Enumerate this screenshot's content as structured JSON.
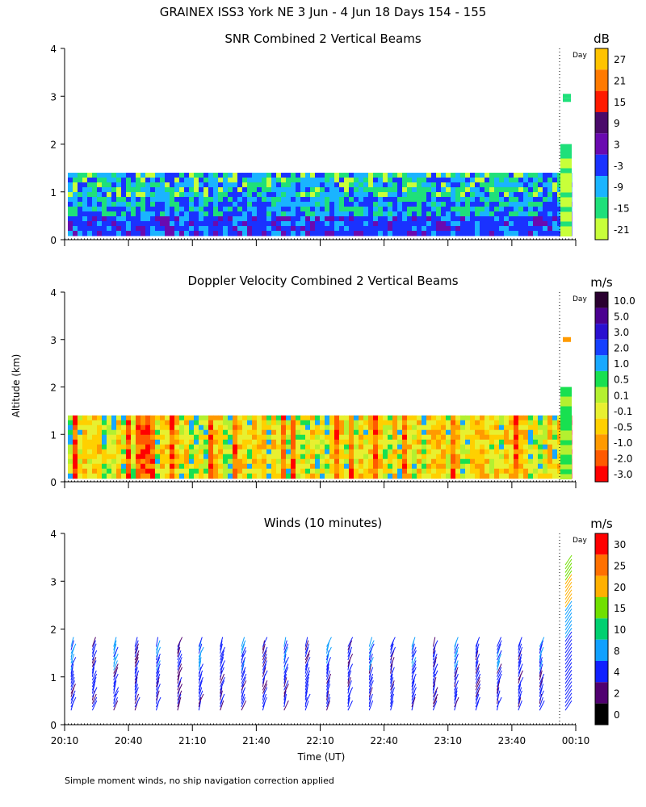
{
  "header": {
    "title": "GRAINEX ISS3 York NE    3 Jun -  4 Jun 18 Days 154 - 155"
  },
  "shared": {
    "ylabel": "Altitude (km)",
    "xlabel": "Time (UT)",
    "day_label": "Day",
    "footnote": "Simple moment winds, no ship navigation correction applied"
  },
  "chart_data": [
    {
      "type": "heatmap",
      "title": "SNR Combined 2 Vertical Beams",
      "xlabel": "Time (UT)",
      "ylabel": "Altitude (km)",
      "x_ticks": [
        "20:10",
        "20:40",
        "21:10",
        "21:40",
        "22:10",
        "22:40",
        "23:10",
        "23:40",
        "00:10"
      ],
      "y_ticks": [
        0,
        1,
        2,
        3,
        4
      ],
      "ylim": [
        0,
        4
      ],
      "colorbar": {
        "unit": "dB",
        "labels": [
          "27",
          "21",
          "15",
          "9",
          "3",
          "-3",
          "-9",
          "-15",
          "-21"
        ],
        "colors": [
          "#ffc300",
          "#ff7a00",
          "#ff1a00",
          "#4a0a6a",
          "#6a0ab0",
          "#1a32ff",
          "#1ab4ff",
          "#1fe07a",
          "#c8ff3a"
        ]
      },
      "description_values": {
        "data_top_km": 1.4,
        "late_data_top_km": 2.0,
        "band_low": "-3 dB",
        "band_high": "-15 dB"
      }
    },
    {
      "type": "heatmap",
      "title": "Doppler Velocity Combined 2 Vertical Beams",
      "xlabel": "Time (UT)",
      "ylabel": "Altitude (km)",
      "x_ticks": [
        "20:10",
        "20:40",
        "21:10",
        "21:40",
        "22:10",
        "22:40",
        "23:10",
        "23:40",
        "00:10"
      ],
      "y_ticks": [
        0,
        1,
        2,
        3,
        4
      ],
      "ylim": [
        0,
        4
      ],
      "colorbar": {
        "unit": "m/s",
        "labels": [
          "10.0",
          "5.0",
          "3.0",
          "2.0",
          "1.0",
          "0.5",
          "0.1",
          "-0.1",
          "-0.5",
          "-1.0",
          "-2.0",
          "-3.0"
        ],
        "colors": [
          "#2a0030",
          "#4a0090",
          "#2a10d0",
          "#1540ff",
          "#18a8ff",
          "#18e050",
          "#b4f030",
          "#e8f030",
          "#ffd000",
          "#ff9a00",
          "#ff5a00",
          "#ff0000"
        ]
      }
    },
    {
      "type": "scatter",
      "title": "Winds (10 minutes)",
      "xlabel": "Time (UT)",
      "ylabel": "Altitude (km)",
      "x_ticks": [
        "20:10",
        "20:40",
        "21:10",
        "21:40",
        "22:10",
        "22:40",
        "23:10",
        "23:40",
        "00:10"
      ],
      "y_ticks": [
        0,
        1,
        2,
        3,
        4
      ],
      "ylim": [
        0,
        4
      ],
      "colorbar": {
        "unit": "m/s",
        "labels": [
          "30",
          "25",
          "20",
          "15",
          "10",
          "8",
          "4",
          "2",
          "0"
        ],
        "colors": [
          "#ff0000",
          "#ff7000",
          "#ffb000",
          "#70e000",
          "#00d070",
          "#10a0ff",
          "#1020ff",
          "#500070",
          "#000000"
        ]
      },
      "profiles_min": [
        0,
        10,
        20,
        30,
        40,
        50,
        60,
        70,
        80,
        90,
        100,
        110,
        120,
        130,
        140,
        150,
        160,
        170,
        180,
        190,
        200,
        210,
        220
      ],
      "profile_top_km": 1.7
    }
  ]
}
